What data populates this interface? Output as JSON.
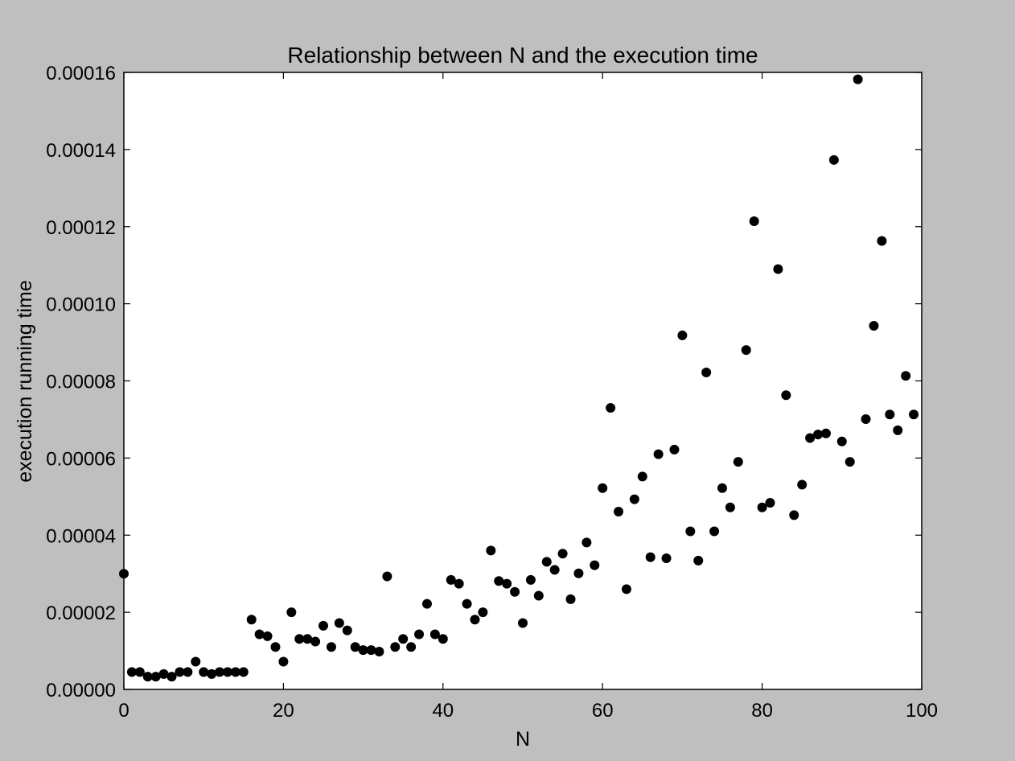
{
  "chart_data": {
    "type": "scatter",
    "title": "Relationship between N and the execution time",
    "xlabel": "N",
    "ylabel": "execution running time",
    "xlim": [
      0,
      100
    ],
    "ylim": [
      0,
      0.00016
    ],
    "xticks": [
      0,
      20,
      40,
      60,
      80,
      100
    ],
    "xtick_labels": [
      "0",
      "20",
      "40",
      "60",
      "80",
      "100"
    ],
    "yticks": [
      0,
      2e-05,
      4e-05,
      6e-05,
      8e-05,
      0.0001,
      0.00012,
      0.00014,
      0.00016
    ],
    "ytick_labels": [
      "0.00000",
      "0.00002",
      "0.00004",
      "0.00006",
      "0.00008",
      "0.00010",
      "0.00012",
      "0.00014",
      "0.00016"
    ],
    "grid": false,
    "colors": {
      "background": "#bfbfbf",
      "plot_area": "#ffffff",
      "marker": "#000000"
    },
    "x": [
      0,
      1,
      2,
      3,
      4,
      5,
      6,
      7,
      8,
      9,
      10,
      11,
      12,
      13,
      14,
      15,
      16,
      17,
      18,
      19,
      20,
      21,
      22,
      23,
      24,
      25,
      26,
      27,
      28,
      29,
      30,
      31,
      32,
      33,
      34,
      35,
      36,
      37,
      38,
      39,
      40,
      41,
      42,
      43,
      44,
      45,
      46,
      47,
      48,
      49,
      50,
      51,
      52,
      53,
      54,
      55,
      56,
      57,
      58,
      59,
      60,
      61,
      62,
      63,
      64,
      65,
      66,
      67,
      68,
      69,
      70,
      71,
      72,
      73,
      74,
      75,
      76,
      77,
      78,
      79,
      80,
      81,
      82,
      83,
      84,
      85,
      86,
      87,
      88,
      89,
      90,
      91,
      92,
      93,
      94,
      95,
      96,
      97,
      98,
      99
    ],
    "y": [
      3e-05,
      4.5e-06,
      4.5e-06,
      3.3e-06,
      3.3e-06,
      4e-06,
      3.3e-06,
      4.5e-06,
      4.5e-06,
      7.2e-06,
      4.5e-06,
      4e-06,
      4.5e-06,
      4.5e-06,
      4.5e-06,
      4.5e-06,
      1.81e-05,
      1.43e-05,
      1.38e-05,
      1.1e-05,
      7.2e-06,
      2e-05,
      1.31e-05,
      1.31e-05,
      1.24e-05,
      1.65e-05,
      1.1e-05,
      1.72e-05,
      1.53e-05,
      1.1e-05,
      1.02e-05,
      1.02e-05,
      9.8e-06,
      2.93e-05,
      1.1e-05,
      1.31e-05,
      1.1e-05,
      1.43e-05,
      2.22e-05,
      1.43e-05,
      1.31e-05,
      2.84e-05,
      2.74e-05,
      2.22e-05,
      1.81e-05,
      2e-05,
      3.6e-05,
      2.81e-05,
      2.74e-05,
      2.53e-05,
      1.72e-05,
      2.84e-05,
      2.43e-05,
      3.31e-05,
      3.1e-05,
      3.52e-05,
      2.34e-05,
      3.01e-05,
      3.81e-05,
      3.22e-05,
      5.22e-05,
      7.3e-05,
      4.61e-05,
      2.6e-05,
      4.93e-05,
      5.52e-05,
      3.43e-05,
      6.1e-05,
      3.4e-05,
      6.22e-05,
      9.18e-05,
      4.1e-05,
      3.34e-05,
      8.22e-05,
      4.1e-05,
      5.22e-05,
      4.72e-05,
      5.9e-05,
      8.8e-05,
      0.0001214,
      4.72e-05,
      4.84e-05,
      0.000109,
      7.63e-05,
      4.52e-05,
      5.31e-05,
      6.52e-05,
      6.61e-05,
      6.64e-05,
      0.0001373,
      6.43e-05,
      5.9e-05,
      0.0001582,
      7.01e-05,
      9.43e-05,
      0.0001163,
      7.13e-05,
      6.72e-05,
      8.13e-05,
      7.13e-05
    ]
  }
}
